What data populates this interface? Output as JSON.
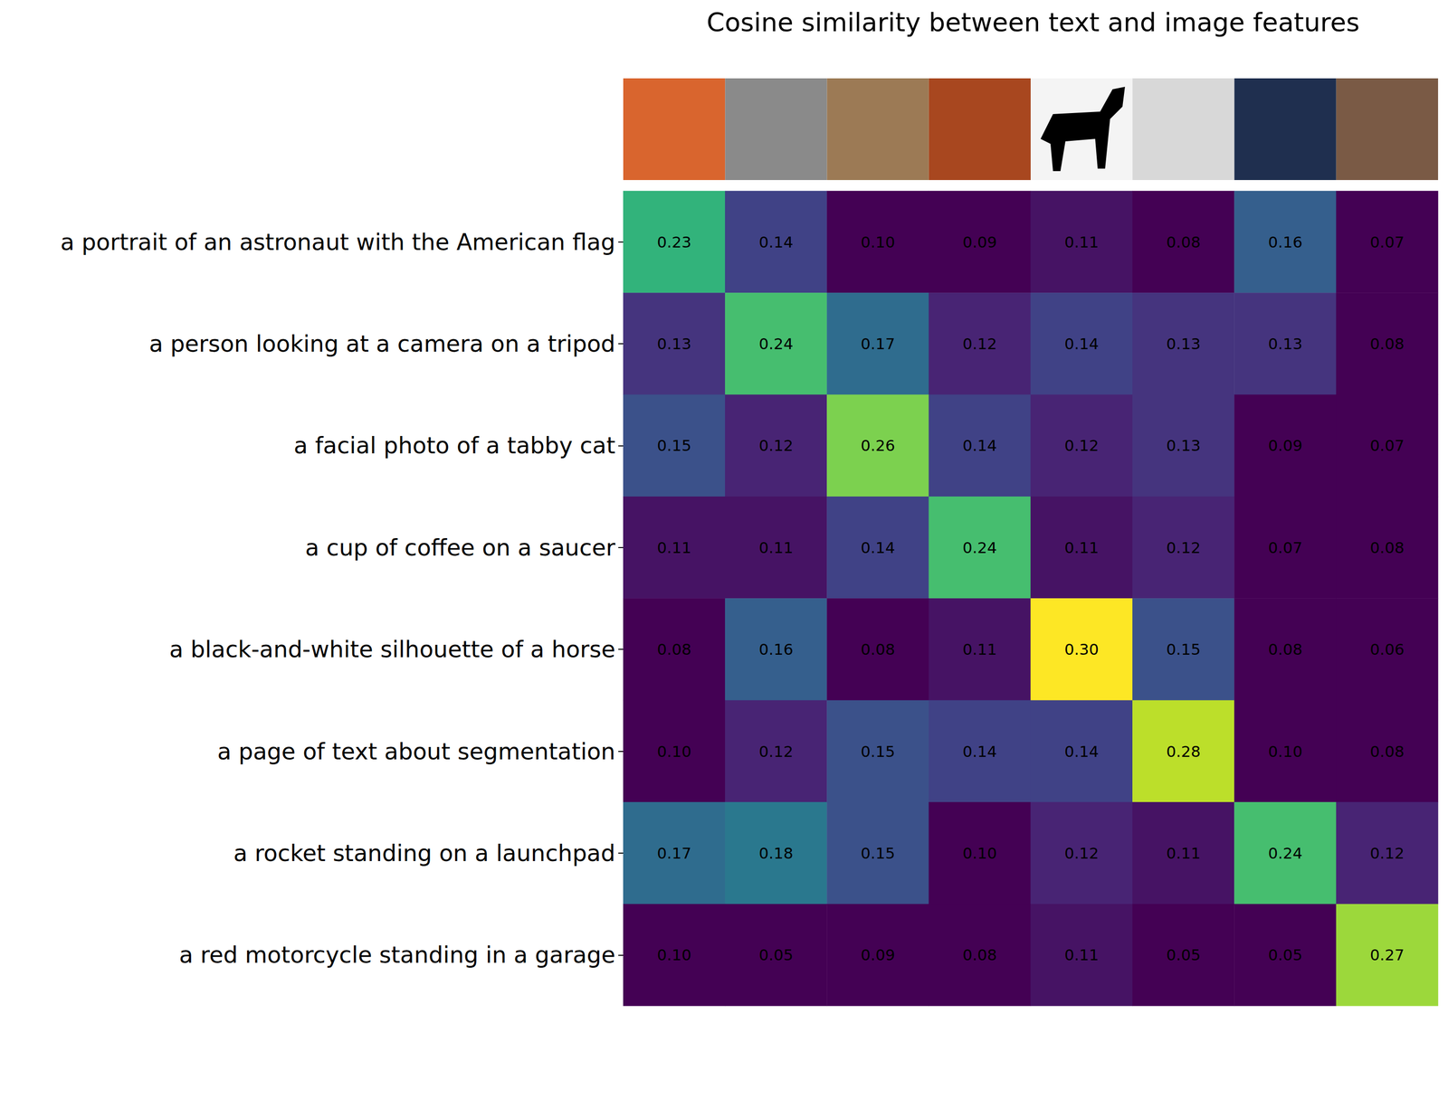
{
  "chart_data": {
    "type": "heatmap",
    "title": "Cosine similarity between text and image features",
    "x_categories": [
      null,
      null,
      null,
      null,
      null,
      null,
      null,
      null
    ],
    "y_categories": [
      "a portrait of an astronaut with the American flag",
      "a person looking at a camera on a tripod",
      "a facial photo of a tabby cat",
      "a cup of coffee on a saucer",
      "a black-and-white silhouette of a horse",
      "a page of text about segmentation",
      "a rocket standing on a launchpad",
      "a red motorcycle standing in a garage"
    ],
    "cells": [
      [
        0.23,
        0.14,
        0.1,
        0.09,
        0.11,
        0.08,
        0.16,
        0.07
      ],
      [
        0.13,
        0.24,
        0.17,
        0.12,
        0.14,
        0.13,
        0.13,
        0.08
      ],
      [
        0.15,
        0.12,
        0.26,
        0.14,
        0.12,
        0.13,
        0.09,
        0.07
      ],
      [
        0.11,
        0.11,
        0.14,
        0.24,
        0.11,
        0.12,
        0.07,
        0.08
      ],
      [
        0.08,
        0.16,
        0.08,
        0.11,
        0.3,
        0.15,
        0.08,
        0.06
      ],
      [
        0.1,
        0.12,
        0.15,
        0.14,
        0.14,
        0.28,
        0.1,
        0.08
      ],
      [
        0.17,
        0.18,
        0.15,
        0.1,
        0.12,
        0.11,
        0.24,
        0.12
      ],
      [
        0.1,
        0.05,
        0.09,
        0.08,
        0.11,
        0.05,
        0.05,
        0.27
      ]
    ],
    "value_labels": [
      [
        "0.23",
        "0.14",
        "0.10",
        "0.09",
        "0.11",
        "0.08",
        "0.16",
        "0.07"
      ],
      [
        "0.13",
        "0.24",
        "0.17",
        "0.12",
        "0.14",
        "0.13",
        "0.13",
        "0.08"
      ],
      [
        "0.15",
        "0.12",
        "0.26",
        "0.14",
        "0.12",
        "0.13",
        "0.09",
        "0.07"
      ],
      [
        "0.11",
        "0.11",
        "0.14",
        "0.24",
        "0.11",
        "0.12",
        "0.07",
        "0.08"
      ],
      [
        "0.08",
        "0.16",
        "0.08",
        "0.11",
        "0.30",
        "0.15",
        "0.08",
        "0.06"
      ],
      [
        "0.10",
        "0.12",
        "0.15",
        "0.14",
        "0.14",
        "0.28",
        "0.10",
        "0.08"
      ],
      [
        "0.17",
        "0.18",
        "0.15",
        "0.10",
        "0.12",
        "0.11",
        "0.24",
        "0.12"
      ],
      [
        "0.10",
        "0.05",
        "0.09",
        "0.08",
        "0.11",
        "0.05",
        "0.05",
        "0.27"
      ]
    ],
    "color_range": [
      0.1,
      0.3
    ],
    "data_labels": true,
    "tick_labels": "y"
  }
}
